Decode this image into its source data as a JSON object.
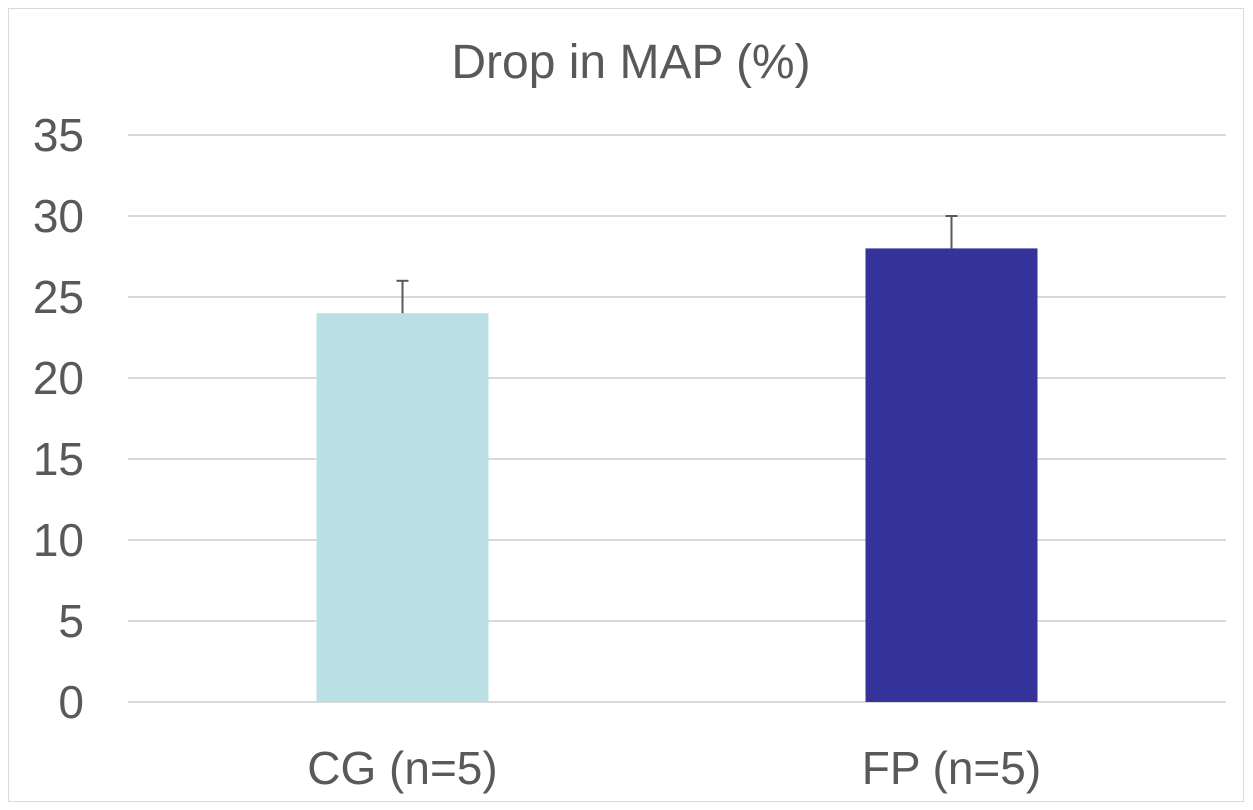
{
  "chart_data": {
    "type": "bar",
    "title": "Drop in MAP (%)",
    "xlabel": "",
    "ylabel": "",
    "categories": [
      "CG (n=5)",
      "FP (n=5)"
    ],
    "values": [
      24,
      28
    ],
    "error_plus": [
      2,
      2
    ],
    "ylim": [
      0,
      35
    ],
    "yticks": [
      0,
      5,
      10,
      15,
      20,
      25,
      30,
      35
    ],
    "grid": true,
    "legend": "none",
    "colors": [
      "#bbe0e3",
      "#353399"
    ]
  }
}
